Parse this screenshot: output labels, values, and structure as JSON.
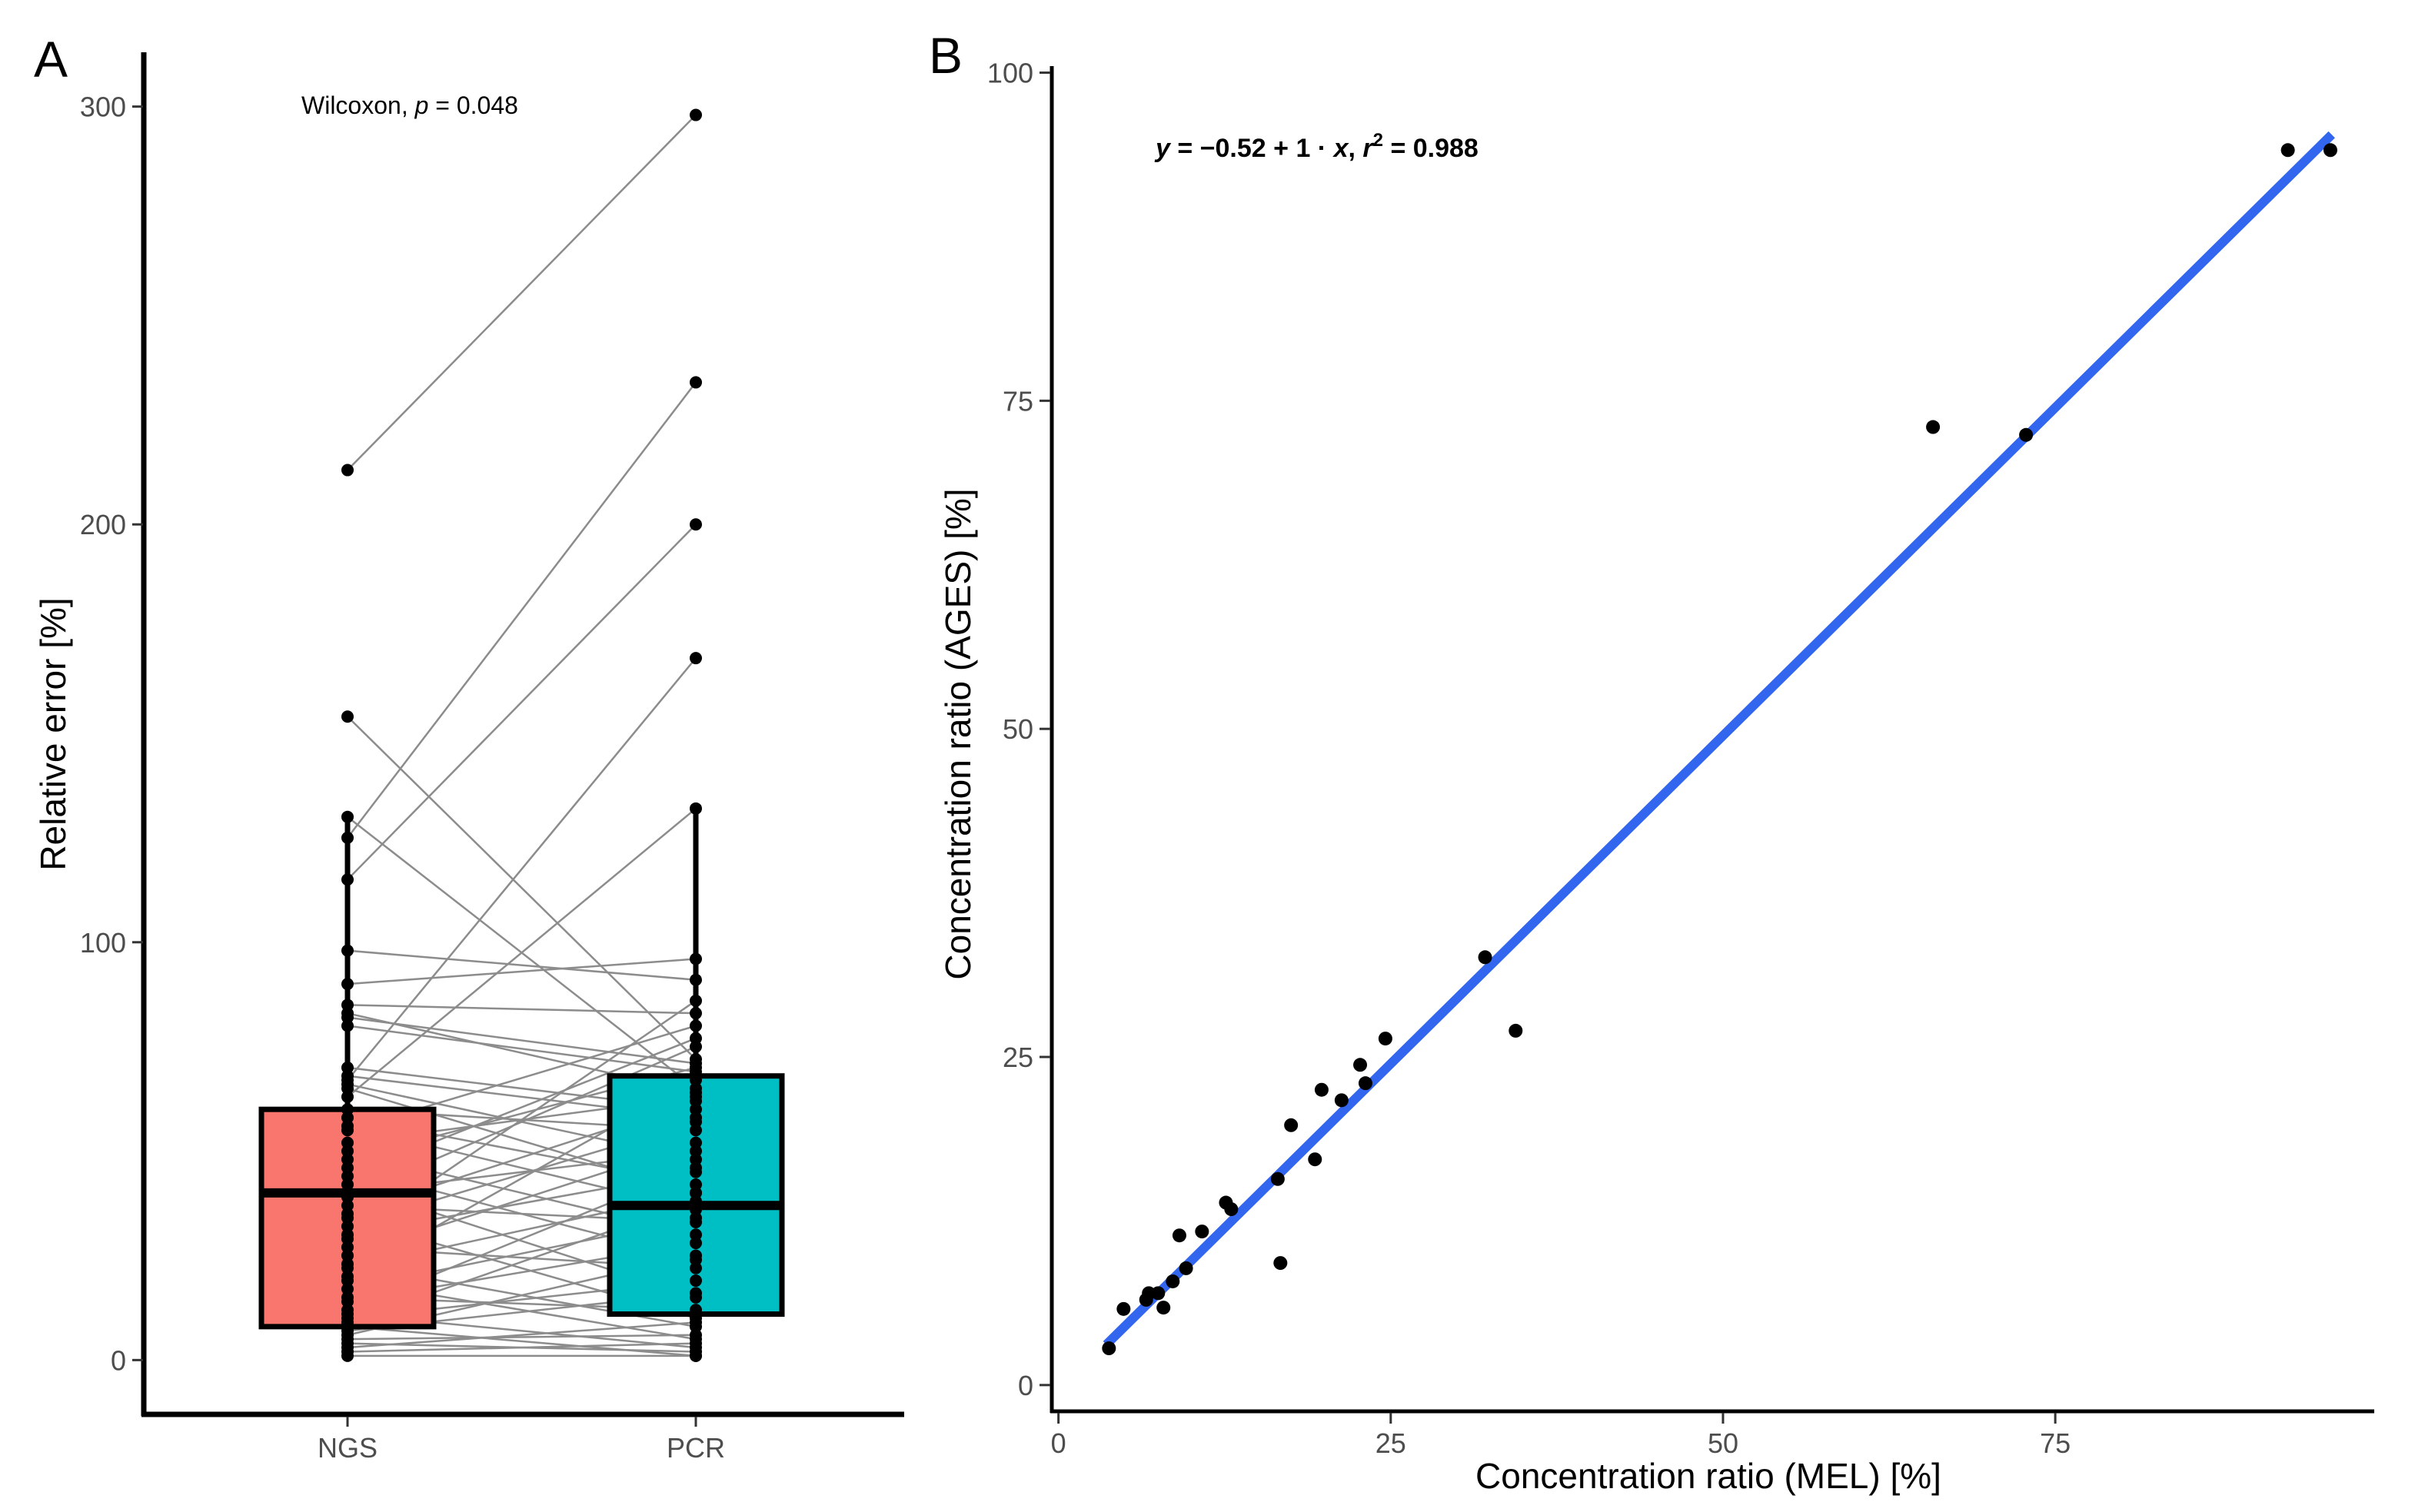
{
  "chart_data": [
    {
      "panel": "A",
      "type": "box",
      "title": "",
      "xlabel": "",
      "ylabel": "Relative error [%]",
      "ylim": [
        -13,
        313
      ],
      "yticks": [
        0,
        100,
        200,
        300
      ],
      "annotation": {
        "test": "Wilcoxon,",
        "p_symbol": "p",
        "p_value": " = 0.048"
      },
      "categories": [
        "NGS",
        "PCR"
      ],
      "colors": {
        "NGS": "#f8766d",
        "PCR": "#00bfc4"
      },
      "boxes": [
        {
          "name": "NGS",
          "q1": 8,
          "median": 40,
          "q3": 60,
          "whisker_low": 0,
          "whisker_high": 130
        },
        {
          "name": "PCR",
          "q1": 11,
          "median": 37,
          "q3": 68,
          "whisker_low": 0,
          "whisker_high": 132
        }
      ],
      "pairs": [
        [
          213,
          298
        ],
        [
          154,
          72
        ],
        [
          130,
          65
        ],
        [
          125,
          234
        ],
        [
          115,
          200
        ],
        [
          98,
          91
        ],
        [
          90,
          96
        ],
        [
          85,
          83
        ],
        [
          83,
          64
        ],
        [
          82,
          71
        ],
        [
          80,
          69
        ],
        [
          70,
          60
        ],
        [
          68,
          58
        ],
        [
          67,
          168
        ],
        [
          66,
          48
        ],
        [
          65,
          40
        ],
        [
          63,
          132
        ],
        [
          60,
          55
        ],
        [
          58,
          42
        ],
        [
          56,
          36
        ],
        [
          55,
          80
        ],
        [
          52,
          63
        ],
        [
          50,
          30
        ],
        [
          48,
          70
        ],
        [
          46,
          24
        ],
        [
          44,
          77
        ],
        [
          42,
          15
        ],
        [
          40,
          50
        ],
        [
          39,
          75
        ],
        [
          37,
          33
        ],
        [
          35,
          62
        ],
        [
          34,
          10
        ],
        [
          32,
          57
        ],
        [
          30,
          45
        ],
        [
          29,
          86
        ],
        [
          27,
          22
        ],
        [
          25,
          52
        ],
        [
          23,
          8
        ],
        [
          22,
          40
        ],
        [
          20,
          67
        ],
        [
          19,
          5
        ],
        [
          17,
          34
        ],
        [
          15,
          12
        ],
        [
          14,
          28
        ],
        [
          12,
          46
        ],
        [
          11,
          3
        ],
        [
          10,
          19
        ],
        [
          9,
          38
        ],
        [
          8,
          1
        ],
        [
          7,
          16
        ],
        [
          6,
          25
        ],
        [
          5,
          6
        ],
        [
          4,
          2
        ],
        [
          3,
          9
        ],
        [
          2,
          4
        ],
        [
          1,
          1
        ]
      ]
    },
    {
      "panel": "B",
      "type": "scatter",
      "title": "",
      "xlabel": "Concentration ratio (MEL) [%]",
      "ylabel": "Concentration ratio (AGES) [%]",
      "xlim": [
        -0.5,
        99
      ],
      "ylim": [
        -2,
        100.5
      ],
      "xticks": [
        0,
        25,
        50,
        75
      ],
      "yticks": [
        0,
        25,
        50,
        75,
        100
      ],
      "annotation": {
        "eq_y": "y",
        "eq_mid": " = −0.52 + 1 · ",
        "eq_x": "x",
        "eq_comma": ",  ",
        "eq_r": "r",
        "eq_sup": "2",
        "eq_val": " = 0.988"
      },
      "regression": {
        "intercept": -0.52,
        "slope": 1,
        "x_range": [
          3.6,
          95.8
        ],
        "color": "#3366ee"
      },
      "points": [
        [
          3.8,
          2.8
        ],
        [
          4.9,
          5.8
        ],
        [
          6.6,
          6.5
        ],
        [
          6.8,
          7.0
        ],
        [
          7.5,
          7.0
        ],
        [
          7.9,
          5.9
        ],
        [
          8.6,
          7.9
        ],
        [
          9.1,
          11.4
        ],
        [
          9.6,
          8.9
        ],
        [
          10.8,
          11.7
        ],
        [
          12.6,
          13.9
        ],
        [
          13.0,
          13.4
        ],
        [
          16.5,
          15.7
        ],
        [
          16.7,
          9.3
        ],
        [
          17.5,
          19.8
        ],
        [
          19.3,
          17.2
        ],
        [
          19.8,
          22.5
        ],
        [
          21.3,
          21.7
        ],
        [
          22.7,
          24.4
        ],
        [
          23.1,
          23.0
        ],
        [
          24.6,
          26.4
        ],
        [
          32.1,
          32.6
        ],
        [
          34.4,
          27.0
        ],
        [
          65.8,
          73.0
        ],
        [
          72.8,
          72.4
        ],
        [
          92.5,
          94.1
        ],
        [
          95.7,
          94.1
        ]
      ]
    }
  ]
}
